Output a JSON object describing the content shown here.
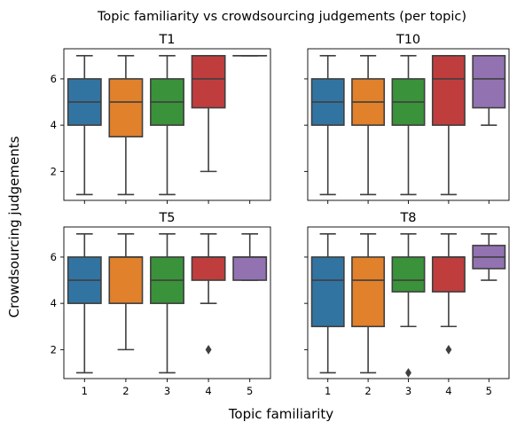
{
  "figure": {
    "suptitle": "Topic familiarity vs crowdsourcing judgements (per topic)",
    "xlabel": "Topic familiarity",
    "ylabel": "Crowdsourcing judgements"
  },
  "colors": {
    "1": "#3274a1",
    "2": "#e1812c",
    "3": "#3a923a",
    "4": "#c03d3e",
    "5": "#9372b2",
    "outline": "#3f3f3f"
  },
  "chart_data": [
    {
      "type": "box",
      "title": "T1",
      "categories": [
        "1",
        "2",
        "3",
        "4",
        "5"
      ],
      "ylim": [
        0.75,
        7.3
      ],
      "yticks": [
        2,
        4,
        6
      ],
      "show_xticklabels": false,
      "show_yticklabels": true,
      "boxes": [
        {
          "cat": "1",
          "whislo": 1,
          "q1": 4,
          "med": 5,
          "q3": 6,
          "whishi": 7,
          "fliers": []
        },
        {
          "cat": "2",
          "whislo": 1,
          "q1": 3.5,
          "med": 5,
          "q3": 6,
          "whishi": 7,
          "fliers": []
        },
        {
          "cat": "3",
          "whislo": 1,
          "q1": 4,
          "med": 5,
          "q3": 6,
          "whishi": 7,
          "fliers": []
        },
        {
          "cat": "4",
          "whislo": 2,
          "q1": 4.75,
          "med": 6,
          "q3": 7,
          "whishi": 7,
          "fliers": []
        },
        {
          "cat": "5",
          "whislo": 7,
          "q1": 7,
          "med": 7,
          "q3": 7,
          "whishi": 7,
          "fliers": []
        }
      ]
    },
    {
      "type": "box",
      "title": "T10",
      "categories": [
        "1",
        "2",
        "3",
        "4",
        "5"
      ],
      "ylim": [
        0.75,
        7.3
      ],
      "yticks": [
        2,
        4,
        6
      ],
      "show_xticklabels": false,
      "show_yticklabels": false,
      "boxes": [
        {
          "cat": "1",
          "whislo": 1,
          "q1": 4,
          "med": 5,
          "q3": 6,
          "whishi": 7,
          "fliers": []
        },
        {
          "cat": "2",
          "whislo": 1,
          "q1": 4,
          "med": 5,
          "q3": 6,
          "whishi": 7,
          "fliers": []
        },
        {
          "cat": "3",
          "whislo": 1,
          "q1": 4,
          "med": 5,
          "q3": 6,
          "whishi": 7,
          "fliers": []
        },
        {
          "cat": "4",
          "whislo": 1,
          "q1": 4,
          "med": 6,
          "q3": 7,
          "whishi": 7,
          "fliers": []
        },
        {
          "cat": "5",
          "whislo": 4,
          "q1": 4.75,
          "med": 6,
          "q3": 7,
          "whishi": 7,
          "fliers": []
        }
      ]
    },
    {
      "type": "box",
      "title": "T5",
      "categories": [
        "1",
        "2",
        "3",
        "4",
        "5"
      ],
      "ylim": [
        0.75,
        7.3
      ],
      "yticks": [
        2,
        4,
        6
      ],
      "show_xticklabels": true,
      "show_yticklabels": true,
      "boxes": [
        {
          "cat": "1",
          "whislo": 1,
          "q1": 4,
          "med": 5,
          "q3": 6,
          "whishi": 7,
          "fliers": []
        },
        {
          "cat": "2",
          "whislo": 2,
          "q1": 4,
          "med": 6,
          "q3": 6,
          "whishi": 7,
          "fliers": []
        },
        {
          "cat": "3",
          "whislo": 1,
          "q1": 4,
          "med": 5,
          "q3": 6,
          "whishi": 7,
          "fliers": []
        },
        {
          "cat": "4",
          "whislo": 4,
          "q1": 5,
          "med": 6,
          "q3": 6,
          "whishi": 7,
          "fliers": [
            2
          ]
        },
        {
          "cat": "5",
          "whislo": 5,
          "q1": 5,
          "med": 6,
          "q3": 6,
          "whishi": 7,
          "fliers": []
        }
      ]
    },
    {
      "type": "box",
      "title": "T8",
      "categories": [
        "1",
        "2",
        "3",
        "4",
        "5"
      ],
      "ylim": [
        0.75,
        7.3
      ],
      "yticks": [
        2,
        4,
        6
      ],
      "show_xticklabels": true,
      "show_yticklabels": false,
      "boxes": [
        {
          "cat": "1",
          "whislo": 1,
          "q1": 3,
          "med": 5,
          "q3": 6,
          "whishi": 7,
          "fliers": []
        },
        {
          "cat": "2",
          "whislo": 1,
          "q1": 3,
          "med": 5,
          "q3": 6,
          "whishi": 7,
          "fliers": []
        },
        {
          "cat": "3",
          "whislo": 3,
          "q1": 4.5,
          "med": 5,
          "q3": 6,
          "whishi": 7,
          "fliers": [
            1
          ]
        },
        {
          "cat": "4",
          "whislo": 3,
          "q1": 4.5,
          "med": 6,
          "q3": 6,
          "whishi": 7,
          "fliers": [
            2
          ]
        },
        {
          "cat": "5",
          "whislo": 5,
          "q1": 5.5,
          "med": 6,
          "q3": 6.5,
          "whishi": 7,
          "fliers": []
        }
      ]
    }
  ]
}
